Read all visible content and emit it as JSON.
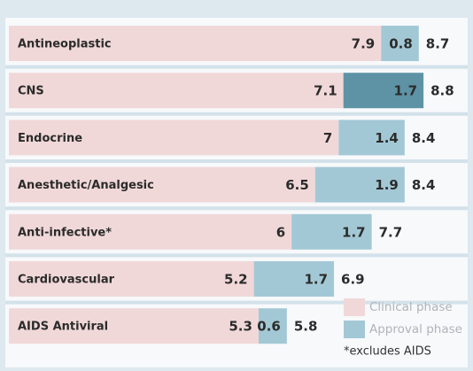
{
  "chart_data": {
    "type": "stacked-hbar",
    "categories": [
      "Antineoplastic",
      "CNS",
      "Endocrine",
      "Anesthetic/Analgesic",
      "Anti-infective*",
      "Cardiovascular",
      "AIDS Antiviral"
    ],
    "series": [
      {
        "name": "Clinical phase",
        "color": "#f1d8d8",
        "values": [
          7.9,
          7.1,
          7.0,
          6.5,
          6.0,
          5.2,
          5.3
        ]
      },
      {
        "name": "Approval phase",
        "color": "#a3c8d5",
        "colors": [
          "#a3c8d5",
          "#5e93a6",
          "#a3c8d5",
          "#a3c8d5",
          "#a3c8d5",
          "#a3c8d5",
          "#a3c8d5"
        ],
        "values": [
          0.8,
          1.7,
          1.4,
          1.9,
          1.7,
          1.7,
          0.6
        ]
      }
    ],
    "totals": [
      8.7,
      8.8,
      8.4,
      8.4,
      7.7,
      6.9,
      5.8
    ],
    "xlim": [
      0,
      9.7
    ],
    "note": "*excludes AIDS"
  }
}
